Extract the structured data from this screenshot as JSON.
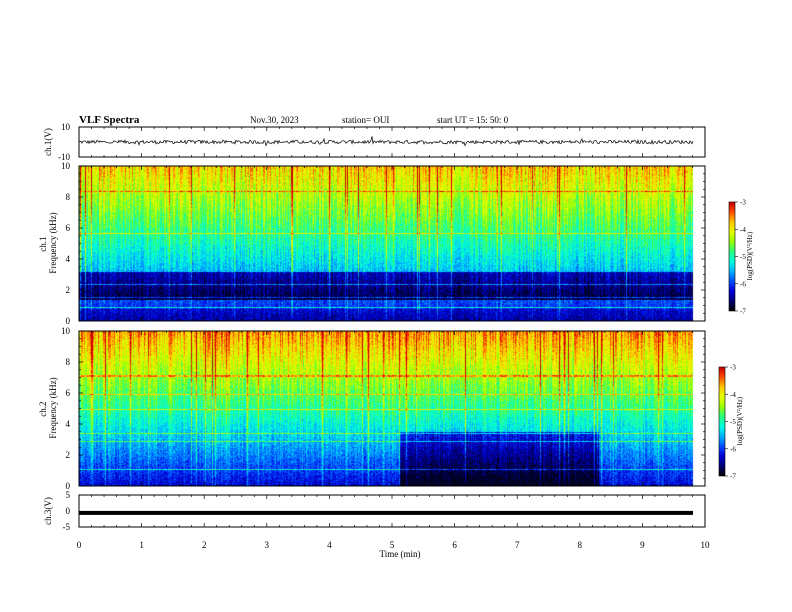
{
  "header": {
    "title": "VLF Spectra",
    "date": "Nov.30, 2023",
    "station": "station= OUI",
    "start": "start  UT =   15: 50: 0"
  },
  "colors": {
    "colormap": [
      "#000000",
      "#00007a",
      "#0000d8",
      "#0050ff",
      "#00b4ff",
      "#00ffe0",
      "#28ff80",
      "#96ff00",
      "#e6ff00",
      "#ffc800",
      "#ff5000",
      "#cc0000"
    ],
    "trace": "#000000",
    "frame": "#000000"
  },
  "chart_data": [
    {
      "type": "line",
      "id": "ch1-waveform",
      "ylabel": "ch.1(V)",
      "ylim": [
        -10,
        10
      ],
      "ytick_labels": [
        "10",
        "-10"
      ],
      "series": [
        {
          "name": "ch.1",
          "level": 0,
          "noise_amplitude": 1.2
        }
      ]
    },
    {
      "type": "heatmap",
      "id": "ch1-spectrogram",
      "ylabel": "ch.1\nFrequency (kHz)",
      "ylim": [
        0,
        10
      ],
      "ytick_labels": [
        "0",
        "2",
        "4",
        "6",
        "8",
        "10"
      ],
      "colorbar": {
        "label": "log(PSD)(V²/Hz)",
        "range": [
          -7,
          -3
        ],
        "ticks": [
          "-3",
          "-4",
          "-5",
          "-6",
          "-7"
        ]
      }
    },
    {
      "type": "heatmap",
      "id": "ch2-spectrogram",
      "ylabel": "ch.2\nFrequency (kHz)",
      "ylim": [
        0,
        10
      ],
      "ytick_labels": [
        "0",
        "2",
        "4",
        "6",
        "8",
        "10"
      ],
      "colorbar": {
        "label": "log(PSD)(V²/Hz)",
        "range": [
          -7,
          -3
        ],
        "ticks": [
          "-3",
          "-4",
          "-5",
          "-6",
          "-7"
        ]
      }
    },
    {
      "type": "line",
      "id": "ch3-waveform",
      "ylabel": "ch.3(V)",
      "ylim": [
        -5,
        5
      ],
      "ytick_labels": [
        "5",
        "0",
        "-5"
      ],
      "series": [
        {
          "name": "ch.3",
          "level": -0.6,
          "noise_amplitude": 0.1
        }
      ]
    }
  ],
  "xaxis": {
    "label": "Time (min)",
    "range": [
      0,
      10
    ],
    "tick_labels": [
      "0",
      "1",
      "2",
      "3",
      "4",
      "5",
      "6",
      "7",
      "8",
      "9",
      "10"
    ]
  }
}
